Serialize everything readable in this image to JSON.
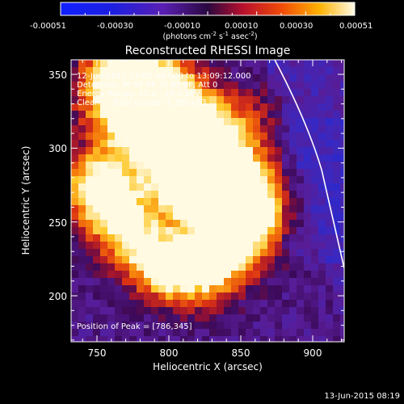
{
  "colorbar": {
    "ticks": [
      "-0.00051",
      "-0.00030",
      "-0.00010",
      "0.00010",
      "0.00030",
      "0.00051"
    ],
    "unit_text": "(photons cm",
    "unit_exp1": "-2",
    "unit_mid": " s",
    "unit_exp2": "-1",
    "unit_mid2": " asec",
    "unit_exp3": "-2",
    "unit_end": ")"
  },
  "plot": {
    "title": "Reconstructed RHESSI Image",
    "xlabel": "Heliocentric X (arcsec)",
    "ylabel": "Heliocentric Y (arcsec)",
    "x_ticks": [
      "750",
      "800",
      "850",
      "900"
    ],
    "y_ticks": [
      "350",
      "300",
      "250",
      "200"
    ],
    "info_lines": [
      "12-Jun-2015 13:05:40.000 to 13:09:12.000",
      "Detectors: 3F 5F 6F 7F 8F 9F, Att 0",
      "Energy Range: 12.0 - 25.0 keV",
      "Clean     Total counts: 7.39E+03"
    ],
    "peak_text": "Position of Peak = [786,345]"
  },
  "footer": {
    "timestamp": "13-Jun-2015 08:19"
  },
  "colors": {
    "background": "#000000",
    "text": "#ffffff",
    "limb_line": "#ffffff"
  }
}
